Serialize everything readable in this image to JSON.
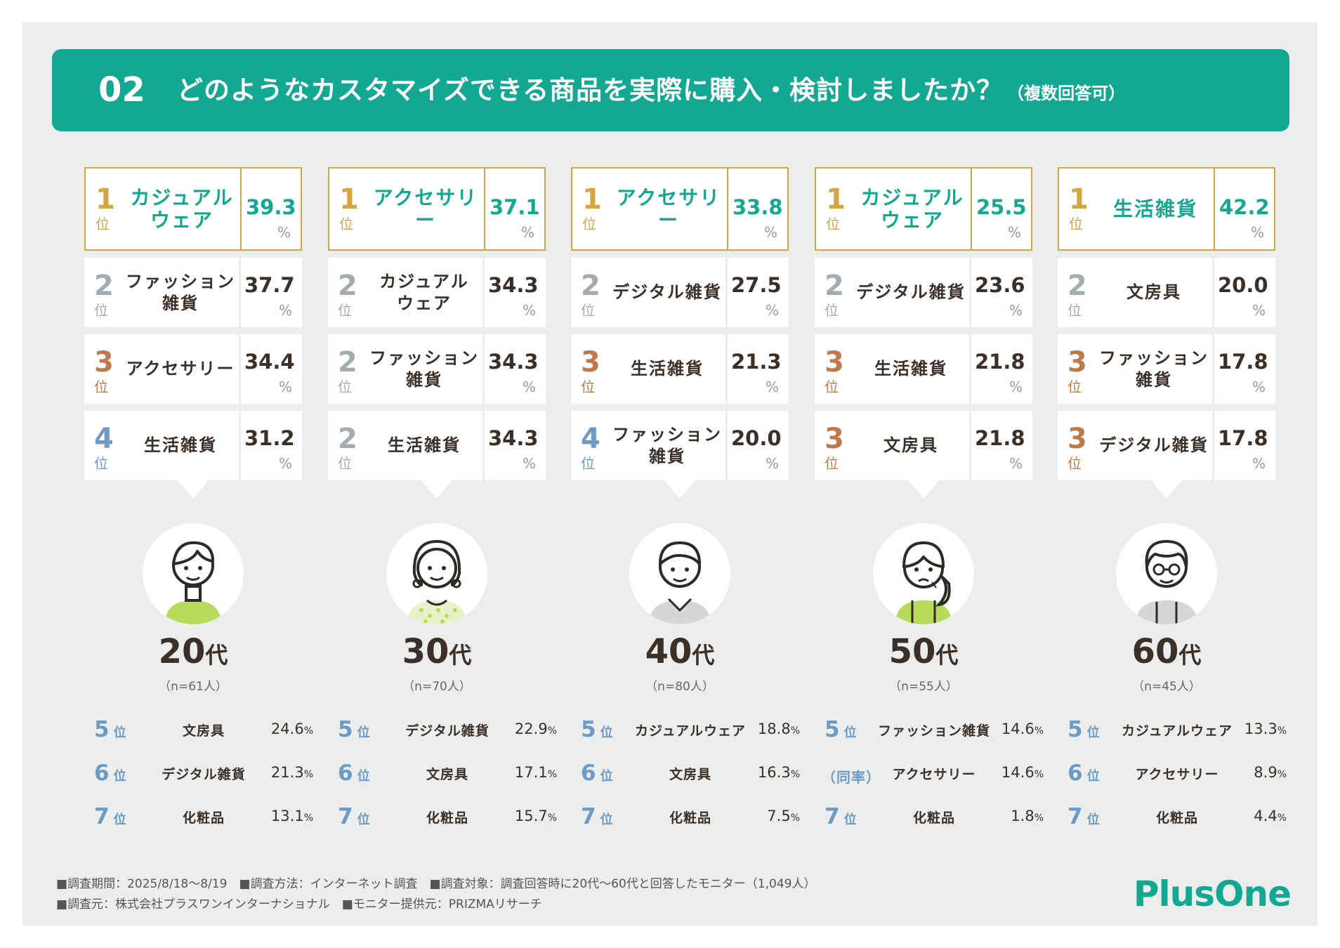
{
  "header": {
    "number": "02",
    "question": "どのようなカスタマイズできる商品を実際に購入・検討しましたか？",
    "note": "（複数回答可）"
  },
  "rank_label": "位",
  "pct_unit": "%",
  "groups": [
    {
      "age": "20",
      "age_suffix": "代",
      "sample": "（n=61人）",
      "avatar": "young-man-icon",
      "top": [
        {
          "rank": "1",
          "name": "カジュアル\nウェア",
          "value": "39.3"
        },
        {
          "rank": "2",
          "name": "ファッション\n雑貨",
          "value": "37.7"
        },
        {
          "rank": "3",
          "name": "アクセサリー",
          "value": "34.4"
        },
        {
          "rank": "4",
          "name": "生活雑貨",
          "value": "31.2"
        }
      ],
      "low": [
        {
          "rank": "5",
          "name": "文房具",
          "value": "24.6"
        },
        {
          "rank": "6",
          "name": "デジタル雑貨",
          "value": "21.3"
        },
        {
          "rank": "7",
          "name": "化粧品",
          "value": "13.1"
        }
      ]
    },
    {
      "age": "30",
      "age_suffix": "代",
      "sample": "（n=70人）",
      "avatar": "woman-earrings-icon",
      "top": [
        {
          "rank": "1",
          "name": "アクセサリー",
          "value": "37.1"
        },
        {
          "rank": "2",
          "name": "カジュアル\nウェア",
          "value": "34.3"
        },
        {
          "rank": "2",
          "name": "ファッション\n雑貨",
          "value": "34.3"
        },
        {
          "rank": "2",
          "name": "生活雑貨",
          "value": "34.3"
        }
      ],
      "low": [
        {
          "rank": "5",
          "name": "デジタル雑貨",
          "value": "22.9"
        },
        {
          "rank": "6",
          "name": "文房具",
          "value": "17.1"
        },
        {
          "rank": "7",
          "name": "化粧品",
          "value": "15.7"
        }
      ]
    },
    {
      "age": "40",
      "age_suffix": "代",
      "sample": "（n=80人）",
      "avatar": "man-collar-icon",
      "top": [
        {
          "rank": "1",
          "name": "アクセサリー",
          "value": "33.8"
        },
        {
          "rank": "2",
          "name": "デジタル雑貨",
          "value": "27.5"
        },
        {
          "rank": "3",
          "name": "生活雑貨",
          "value": "21.3"
        },
        {
          "rank": "4",
          "name": "ファッション\n雑貨",
          "value": "20.0"
        }
      ],
      "low": [
        {
          "rank": "5",
          "name": "カジュアルウェア",
          "value": "18.8"
        },
        {
          "rank": "6",
          "name": "文房具",
          "value": "16.3"
        },
        {
          "rank": "7",
          "name": "化粧品",
          "value": "7.5"
        }
      ]
    },
    {
      "age": "50",
      "age_suffix": "代",
      "sample": "（n=55人）",
      "avatar": "woman-ponytail-icon",
      "top": [
        {
          "rank": "1",
          "name": "カジュアル\nウェア",
          "value": "25.5"
        },
        {
          "rank": "2",
          "name": "デジタル雑貨",
          "value": "23.6"
        },
        {
          "rank": "3",
          "name": "生活雑貨",
          "value": "21.8"
        },
        {
          "rank": "3",
          "name": "文房具",
          "value": "21.8"
        }
      ],
      "low": [
        {
          "rank": "5",
          "name": "ファッション雑貨",
          "value": "14.6"
        },
        {
          "rank": "（同率）",
          "name": "アクセサリー",
          "value": "14.6"
        },
        {
          "rank": "7",
          "name": "化粧品",
          "value": "1.8"
        }
      ]
    },
    {
      "age": "60",
      "age_suffix": "代",
      "sample": "（n=45人）",
      "avatar": "man-glasses-icon",
      "top": [
        {
          "rank": "1",
          "name": "生活雑貨",
          "value": "42.2"
        },
        {
          "rank": "2",
          "name": "文房具",
          "value": "20.0"
        },
        {
          "rank": "3",
          "name": "ファッション\n雑貨",
          "value": "17.8"
        },
        {
          "rank": "3",
          "name": "デジタル雑貨",
          "value": "17.8"
        }
      ],
      "low": [
        {
          "rank": "5",
          "name": "カジュアルウェア",
          "value": "13.3"
        },
        {
          "rank": "6",
          "name": "アクセサリー",
          "value": "8.9"
        },
        {
          "rank": "7",
          "name": "化粧品",
          "value": "4.4"
        }
      ]
    }
  ],
  "colors": {
    "accent": "#12a891",
    "gold": "#d3a543",
    "silver": "#a3acb0",
    "bronze": "#bf7a4b",
    "blue": "#6d9bc4",
    "lime": "#b7dc5c"
  },
  "footer": {
    "line1": "■調査期間：2025/8/18〜8/19　■調査方法：インターネット調査　■調査対象：調査回答時に20代〜60代と回答したモニター（1,049人）",
    "line2": "■調査元：株式会社プラスワンインターナショナル　■モニター提供元：PRIZMAリサーチ"
  },
  "logo": "PlusOne"
}
